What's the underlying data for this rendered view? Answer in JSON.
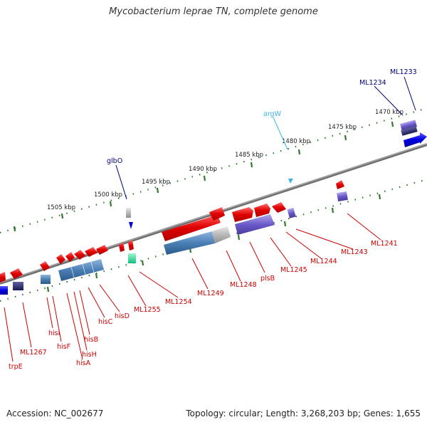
{
  "title": "Mycobacterium leprae TN, complete genome",
  "accession_label": "Accession: NC_002677",
  "stats_label": "Topology: circular; Length: 3,268,203 bp; Genes: 1,655",
  "colors": {
    "backbone": "#7a7a7a",
    "tick": "#2f7a2f",
    "gene_label": "#cc0000",
    "trna_label": "#00007a",
    "rrna_label": "#3bb0d8",
    "cds_forward": "#e80000",
    "cds_reverse": "#e80000",
    "feature_blue": "#4a7fb5",
    "feature_purple": "#6a5ac8"
  },
  "kbp_ticks": [
    "1470 kbp",
    "1475 kbp",
    "1480 kbp",
    "1485 kbp",
    "1490 kbp",
    "1495 kbp",
    "1500 kbp",
    "1505 kbp"
  ],
  "labels": {
    "ML1233": "ML1233",
    "ML1234": "ML1234",
    "argW": "argW",
    "glbO": "glbO",
    "ML1241": "ML1241",
    "ML1243": "ML1243",
    "ML1244": "ML1244",
    "ML1245": "ML1245",
    "plsB": "plsB",
    "ML1248": "ML1248",
    "ML1249": "ML1249",
    "ML1254": "ML1254",
    "ML1255": "ML1255",
    "hisD": "hisD",
    "hisC": "hisC",
    "hisB": "hisB",
    "hisH": "hisH",
    "hisA": "hisA",
    "hisF": "hisF",
    "hisI": "hisI",
    "ML1267": "ML1267",
    "trpE": "trpE"
  }
}
